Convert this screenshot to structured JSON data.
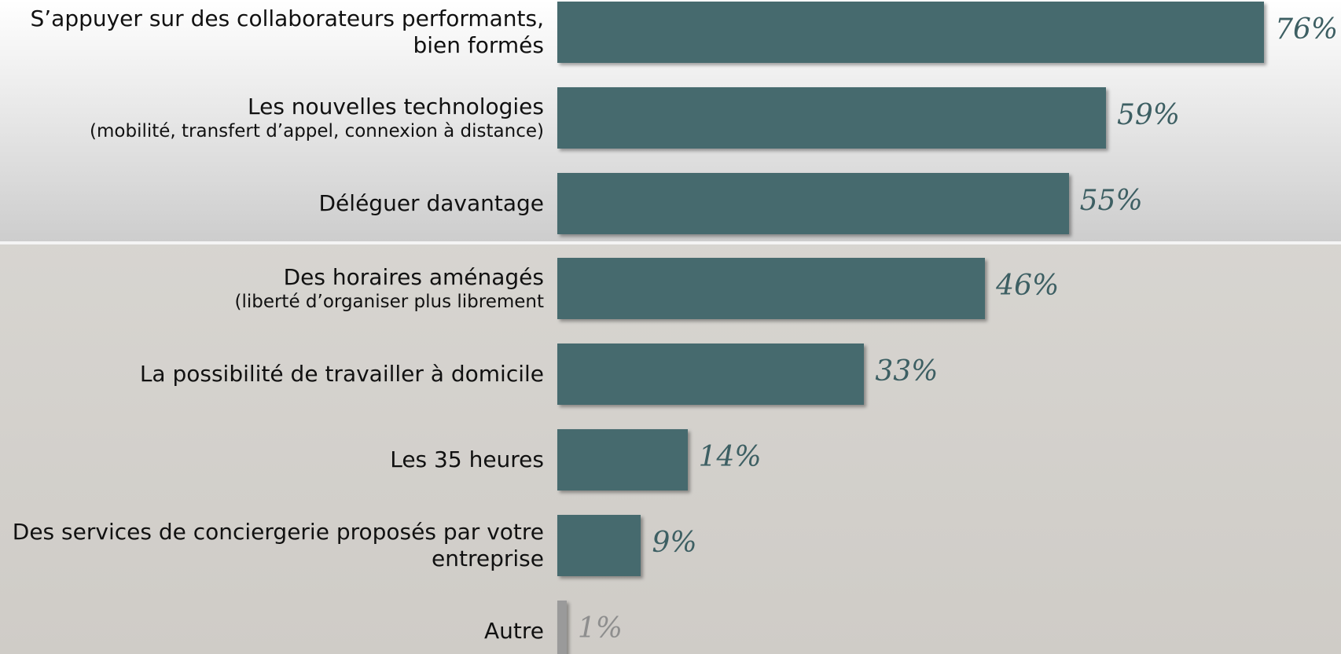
{
  "chart_data": {
    "type": "bar",
    "orientation": "horizontal",
    "categories": [
      "S’appuyer sur des collaborateurs performants, bien formés",
      "Les nouvelles technologies",
      "Déléguer davantage",
      "Des horaires aménagés",
      "La possibilité de travailler à domicile",
      "Les 35 heures",
      "Des services de conciergerie proposés par votre entreprise",
      "Autre"
    ],
    "category_notes": [
      null,
      "(mobilité, transfert d’appel, connexion à distance)",
      null,
      "(liberté d’organiser plus librement",
      null,
      null,
      null,
      null
    ],
    "values": [
      76,
      59,
      55,
      46,
      33,
      14,
      9,
      1
    ],
    "value_labels": [
      "76%",
      "59%",
      "55%",
      "46%",
      "33%",
      "14%",
      "9%",
      "1%"
    ],
    "colors": [
      "#466a6e",
      "#466a6e",
      "#466a6e",
      "#466a6e",
      "#466a6e",
      "#466a6e",
      "#466a6e",
      "#9a9a9a"
    ],
    "label_colors": [
      "#3d5f63",
      "#3d5f63",
      "#3d5f63",
      "#3d5f63",
      "#3d5f63",
      "#3d5f63",
      "#3d5f63",
      "#8e8e8e"
    ]
  }
}
